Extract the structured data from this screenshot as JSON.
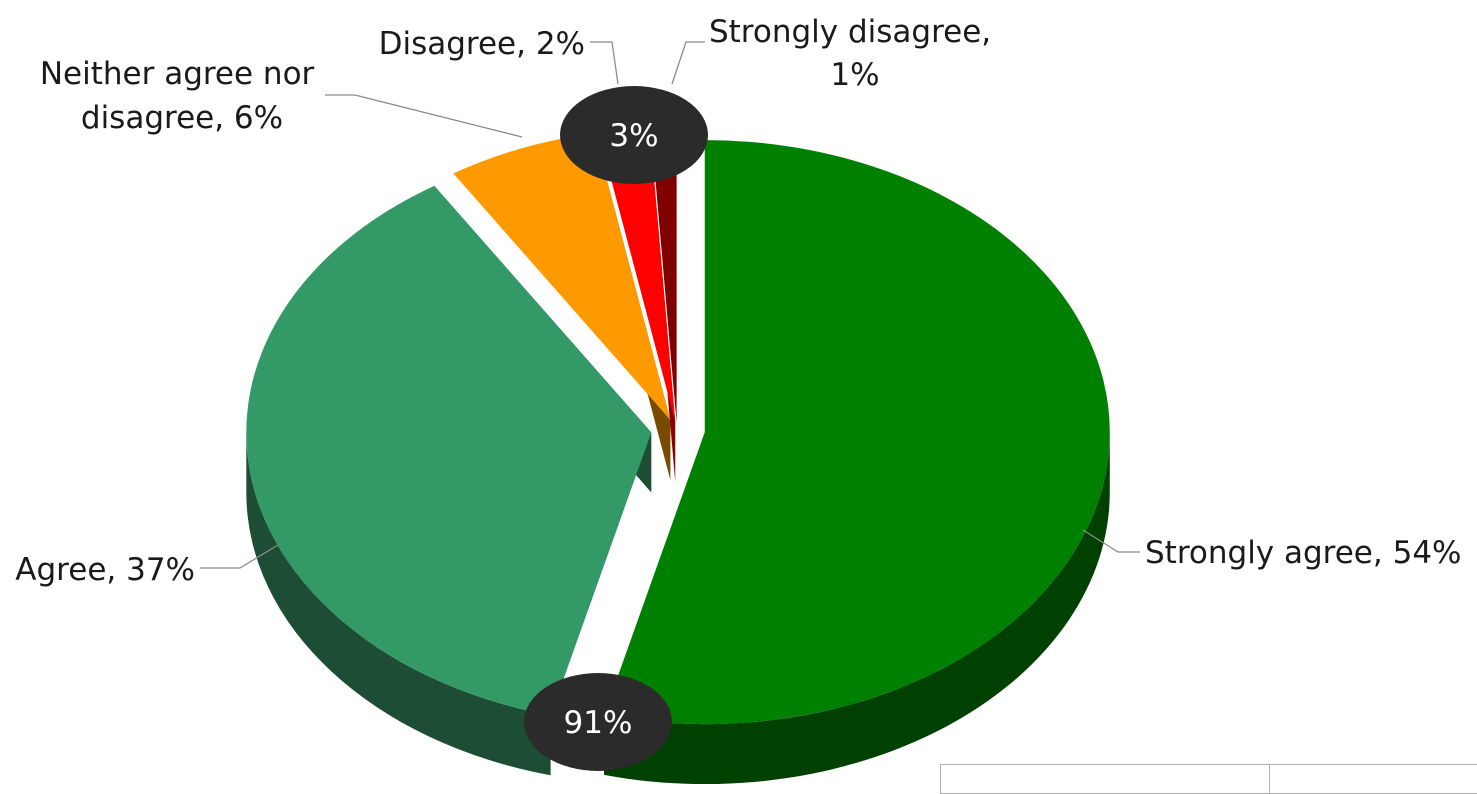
{
  "chart_data": {
    "type": "pie",
    "title": "",
    "slices": [
      {
        "label": "Strongly agree, 54%",
        "value": 54,
        "color": "#008000",
        "side": "#004000"
      },
      {
        "label": "Agree, 37%",
        "value": 37,
        "color": "#339966",
        "side": "#1d4e35"
      },
      {
        "label": "Neither agree nor disagree, 6%",
        "value": 6,
        "color": "#ff9900",
        "side": "#7a4a00"
      },
      {
        "label": "Disagree, 2%",
        "value": 2,
        "color": "#ff0000",
        "side": "#8b0000"
      },
      {
        "label": "Strongly disagree, 1%",
        "value": 1,
        "color": "#800000",
        "side": "#4a0000"
      }
    ],
    "groups": [
      {
        "label": "91%",
        "members": [
          "Strongly agree",
          "Agree"
        ]
      },
      {
        "label": "3%",
        "members": [
          "Disagree",
          "Strongly disagree"
        ]
      }
    ],
    "badge_color": "#2b2b2b"
  }
}
